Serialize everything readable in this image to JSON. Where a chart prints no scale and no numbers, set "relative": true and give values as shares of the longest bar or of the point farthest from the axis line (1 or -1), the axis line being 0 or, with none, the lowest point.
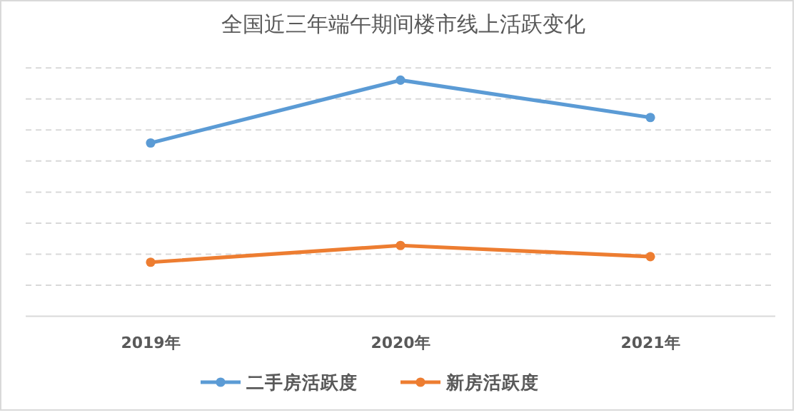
{
  "chart_data": {
    "type": "line",
    "title": "全国近三年端午期间楼市线上活跃变化",
    "categories": [
      "2019年",
      "2020年",
      "2021年"
    ],
    "relative": true,
    "grid": "y",
    "legend": "bottom",
    "marker": "circle",
    "line_style": "solid",
    "series": [
      {
        "name": "二手房活跃度",
        "color": "#5b9bd5",
        "values": [
          0.734,
          1,
          0.842
        ]
      },
      {
        "name": "新房活跃度",
        "color": "#ed7d31",
        "values": [
          0.229,
          0.3,
          0.253
        ]
      }
    ]
  }
}
